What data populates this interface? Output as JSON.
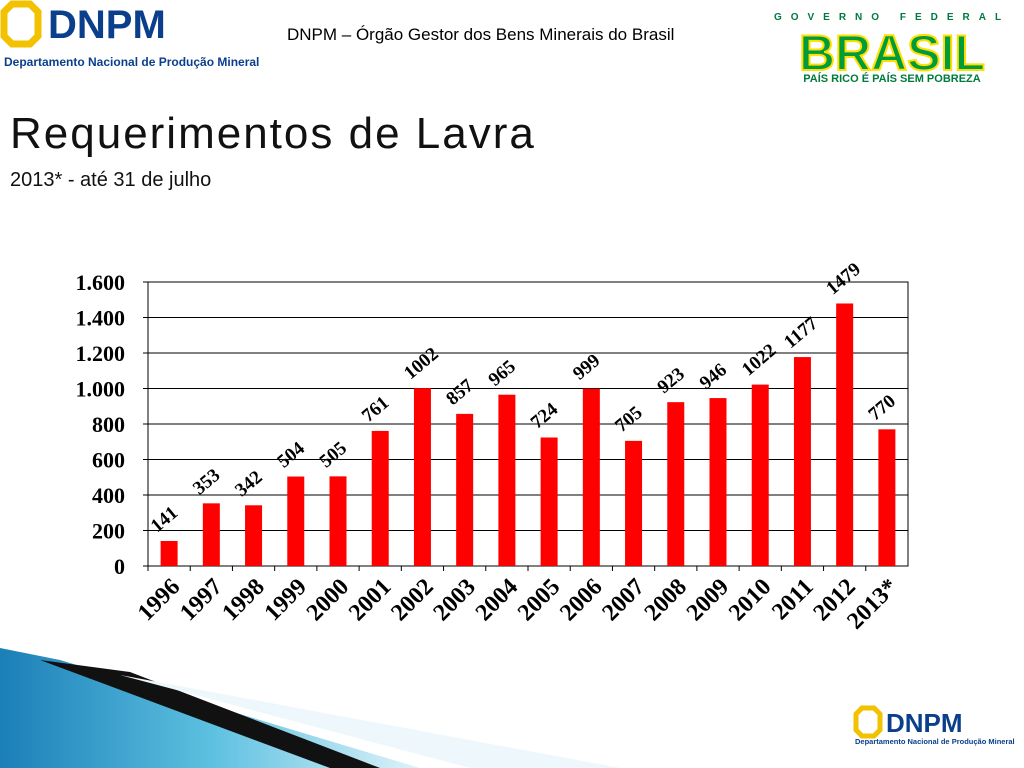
{
  "header": {
    "logo": "DNPM",
    "logo_caption": "Departamento Nacional de Produção Mineral",
    "tagline": "DNPM – Órgão Gestor dos Bens Minerais do Brasil",
    "gov_top": "GOVERNO FEDERAL",
    "gov_name": "BRASIL",
    "gov_slogan": "PAÍS RICO É PAÍS SEM POBREZA"
  },
  "footer": {
    "logo": "DNPM",
    "logo_caption": "Departamento Nacional de Produção Mineral"
  },
  "chart_data": {
    "type": "bar",
    "title": "Requerimentos de Lavra",
    "subtitle": "2013* - até 31 de julho",
    "categories": [
      "1996",
      "1997",
      "1998",
      "1999",
      "2000",
      "2001",
      "2002",
      "2003",
      "2004",
      "2005",
      "2006",
      "2007",
      "2008",
      "2009",
      "2010",
      "2011",
      "2012",
      "2013*"
    ],
    "values": [
      141,
      353,
      342,
      504,
      505,
      761,
      1002,
      857,
      965,
      724,
      999,
      705,
      923,
      946,
      1022,
      1177,
      1479,
      770
    ],
    "color": "#ff0000",
    "ylim": [
      0,
      1600
    ],
    "yticks": [
      0,
      200,
      400,
      600,
      800,
      {
        "value": 1000,
        "label": "1.000"
      },
      {
        "value": 1200,
        "label": "1.200"
      },
      {
        "value": 1400,
        "label": "1.400"
      },
      {
        "value": 1600,
        "label": "1.600"
      }
    ],
    "grid": true
  }
}
